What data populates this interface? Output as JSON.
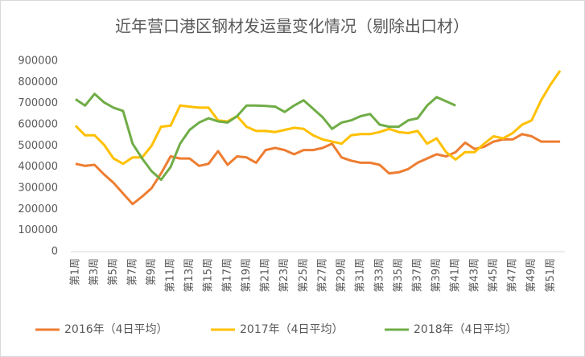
{
  "chart_data": {
    "type": "line",
    "title": "近年营口港区钢材发运量变化情况（剔除出口材）",
    "categories": [
      "第1周",
      null,
      "第3周",
      null,
      "第5周",
      null,
      "第7周",
      null,
      "第9周",
      null,
      "第11周",
      null,
      "第13周",
      null,
      "第15周",
      null,
      "第17周",
      null,
      "第19周",
      null,
      "第21周",
      null,
      "第23周",
      null,
      "第25周",
      null,
      "第27周",
      null,
      "第29周",
      null,
      "第31周",
      null,
      "第33周",
      null,
      "第35周",
      null,
      "第37周",
      null,
      "第39周",
      null,
      "第41周",
      null,
      "第43周",
      null,
      "第45周",
      null,
      "第47周",
      null,
      "第49周",
      null,
      "第51周",
      null
    ],
    "series": [
      {
        "name": "2016年（4日平均）",
        "color": "#ed7d31",
        "values": [
          415000,
          405000,
          410000,
          365000,
          325000,
          275000,
          225000,
          260000,
          300000,
          370000,
          450000,
          440000,
          440000,
          405000,
          415000,
          475000,
          410000,
          450000,
          445000,
          420000,
          480000,
          490000,
          480000,
          460000,
          480000,
          480000,
          490000,
          510000,
          445000,
          430000,
          420000,
          420000,
          410000,
          370000,
          375000,
          390000,
          420000,
          440000,
          460000,
          450000,
          470000,
          515000,
          485000,
          495000,
          520000,
          530000,
          530000,
          555000,
          545000,
          520000,
          520000,
          520000
        ]
      },
      {
        "name": "2017年（4日平均）",
        "color": "#ffc000",
        "values": [
          595000,
          550000,
          550000,
          505000,
          440000,
          415000,
          445000,
          445000,
          500000,
          590000,
          595000,
          690000,
          685000,
          680000,
          680000,
          620000,
          615000,
          640000,
          590000,
          570000,
          570000,
          565000,
          575000,
          585000,
          580000,
          550000,
          530000,
          520000,
          510000,
          550000,
          555000,
          555000,
          565000,
          580000,
          565000,
          560000,
          570000,
          510000,
          535000,
          470000,
          435000,
          470000,
          470000,
          510000,
          545000,
          535000,
          560000,
          600000,
          620000,
          715000,
          790000,
          855000
        ]
      },
      {
        "name": "2018年（4日平均）",
        "color": "#70ad47",
        "values": [
          720000,
          690000,
          745000,
          705000,
          680000,
          665000,
          510000,
          440000,
          380000,
          340000,
          400000,
          510000,
          575000,
          610000,
          630000,
          615000,
          610000,
          640000,
          690000,
          690000,
          688000,
          685000,
          660000,
          690000,
          715000,
          675000,
          635000,
          580000,
          610000,
          620000,
          640000,
          650000,
          600000,
          590000,
          590000,
          620000,
          630000,
          690000,
          730000,
          710000,
          690000,
          null,
          null,
          null,
          null,
          null,
          null,
          null,
          null,
          null,
          null,
          null
        ]
      }
    ],
    "ylim": [
      0,
      900000
    ],
    "yticks": [
      0,
      100000,
      200000,
      300000,
      400000,
      500000,
      600000,
      700000,
      800000,
      900000
    ],
    "legend": "bottom"
  }
}
